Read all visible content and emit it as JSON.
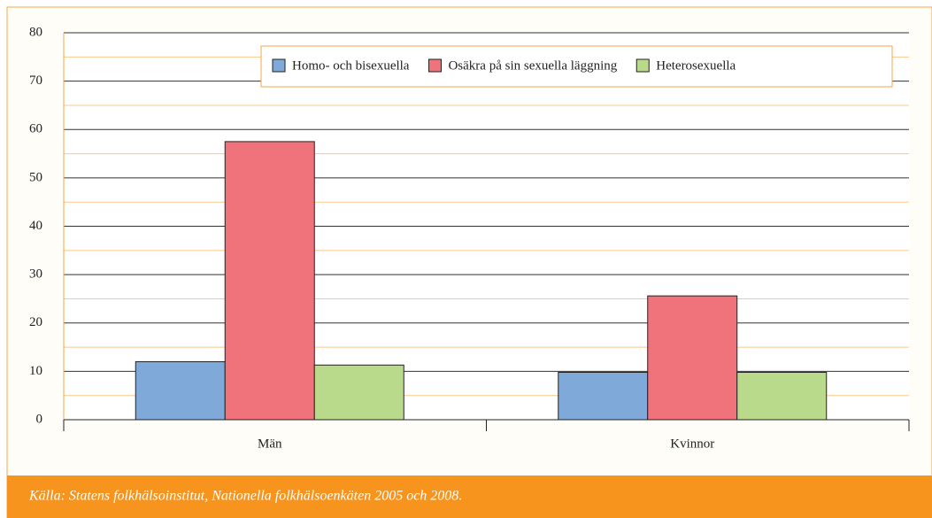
{
  "chart_data": {
    "type": "bar",
    "categories": [
      "Män",
      "Kvinnor"
    ],
    "series": [
      {
        "name": "Homo- och bisexuella",
        "color": "#7fa9d9",
        "values": [
          12,
          9.8
        ]
      },
      {
        "name": "Osäkra på sin sexuella läggning",
        "color": "#f0737c",
        "values": [
          57.5,
          25.6
        ]
      },
      {
        "name": "Heterosexuella",
        "color": "#b9d98b",
        "values": [
          11.3,
          9.8
        ]
      }
    ],
    "ylim": [
      0,
      80
    ],
    "yticks": [
      0,
      10,
      20,
      30,
      40,
      50,
      60,
      70,
      80
    ],
    "minor_yticks": [
      5,
      15,
      25,
      35,
      45,
      55,
      65,
      75
    ],
    "grid": true,
    "legend": "top",
    "source": "Källa: Statens folkhälsoinstitut, Nationella folkhälsoenkäten 2005 och 2008."
  }
}
